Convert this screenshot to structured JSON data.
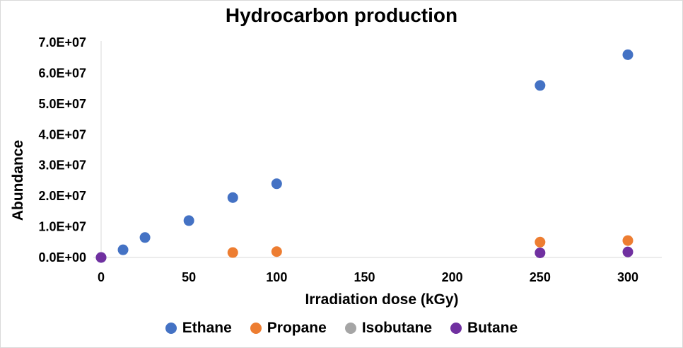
{
  "chart_data": {
    "type": "scatter",
    "title": "Hydrocarbon production",
    "xlabel": "Irradiation dose (kGy)",
    "ylabel": "Abundance",
    "xlim": [
      0,
      300
    ],
    "ylim": [
      0,
      70000000
    ],
    "x_ticks": [
      "0",
      "50",
      "100",
      "150",
      "200",
      "250",
      "300"
    ],
    "y_ticks": [
      "0.0E+00",
      "1.0E+07",
      "2.0E+07",
      "3.0E+07",
      "4.0E+07",
      "5.0E+07",
      "6.0E+07",
      "7.0E+07"
    ],
    "grid": false,
    "legend_position": "bottom",
    "series": [
      {
        "name": "Ethane",
        "color": "#4472c4",
        "points": [
          [
            0,
            0
          ],
          [
            12.5,
            2500000
          ],
          [
            25,
            6500000
          ],
          [
            50,
            12000000
          ],
          [
            75,
            19500000
          ],
          [
            100,
            24000000
          ],
          [
            250,
            56000000
          ],
          [
            300,
            66000000
          ]
        ],
        "error_bars": [
          null,
          null,
          null,
          null,
          null,
          null,
          1500000,
          null
        ]
      },
      {
        "name": "Propane",
        "color": "#ed7d31",
        "points": [
          [
            75,
            1600000
          ],
          [
            100,
            1900000
          ],
          [
            250,
            5000000
          ],
          [
            300,
            5500000
          ]
        ]
      },
      {
        "name": "Isobutane",
        "color": "#a5a5a5",
        "points": []
      },
      {
        "name": "Butane",
        "color": "#7030a0",
        "points": [
          [
            0,
            0
          ],
          [
            250,
            1500000
          ],
          [
            300,
            1800000
          ]
        ]
      }
    ]
  }
}
